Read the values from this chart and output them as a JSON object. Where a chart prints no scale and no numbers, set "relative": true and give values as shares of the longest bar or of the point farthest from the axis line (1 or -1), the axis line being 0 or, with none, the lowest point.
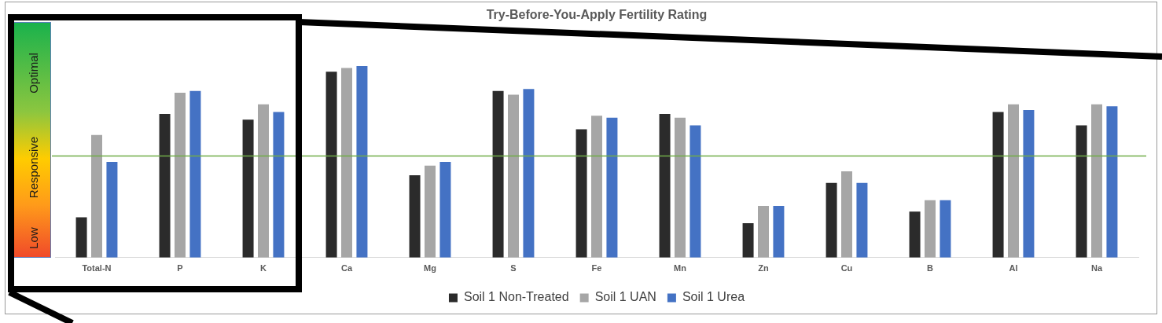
{
  "chart_data": {
    "type": "bar",
    "title": "Try-Before-You-Apply Fertility Rating",
    "relative": true,
    "categories": [
      "Total-N",
      "P",
      "K",
      "Ca",
      "Mg",
      "S",
      "Fe",
      "Mn",
      "Zn",
      "Cu",
      "B",
      "Al",
      "Na"
    ],
    "series": [
      {
        "name": "Soil 1 Non-Treated",
        "color": "#2b2b2b",
        "values": [
          0.21,
          0.75,
          0.72,
          0.97,
          0.43,
          0.87,
          0.67,
          0.75,
          0.18,
          0.39,
          0.24,
          0.76,
          0.69
        ]
      },
      {
        "name": "Soil 1 UAN",
        "color": "#a6a6a6",
        "values": [
          0.64,
          0.86,
          0.8,
          0.99,
          0.48,
          0.85,
          0.74,
          0.73,
          0.27,
          0.45,
          0.3,
          0.8,
          0.8
        ]
      },
      {
        "name": "Soil 1 Urea",
        "color": "#4472c4",
        "values": [
          0.5,
          0.87,
          0.76,
          1,
          0.5,
          0.88,
          0.73,
          0.69,
          0.27,
          0.39,
          0.3,
          0.77,
          0.79
        ]
      }
    ],
    "ref_lines": [
      {
        "axis": "y",
        "value": 0.53,
        "color": "#70ad47"
      }
    ],
    "annotations": [
      "Low",
      "Responsive",
      "Optimal"
    ],
    "legend": "bottom",
    "grid": false
  }
}
